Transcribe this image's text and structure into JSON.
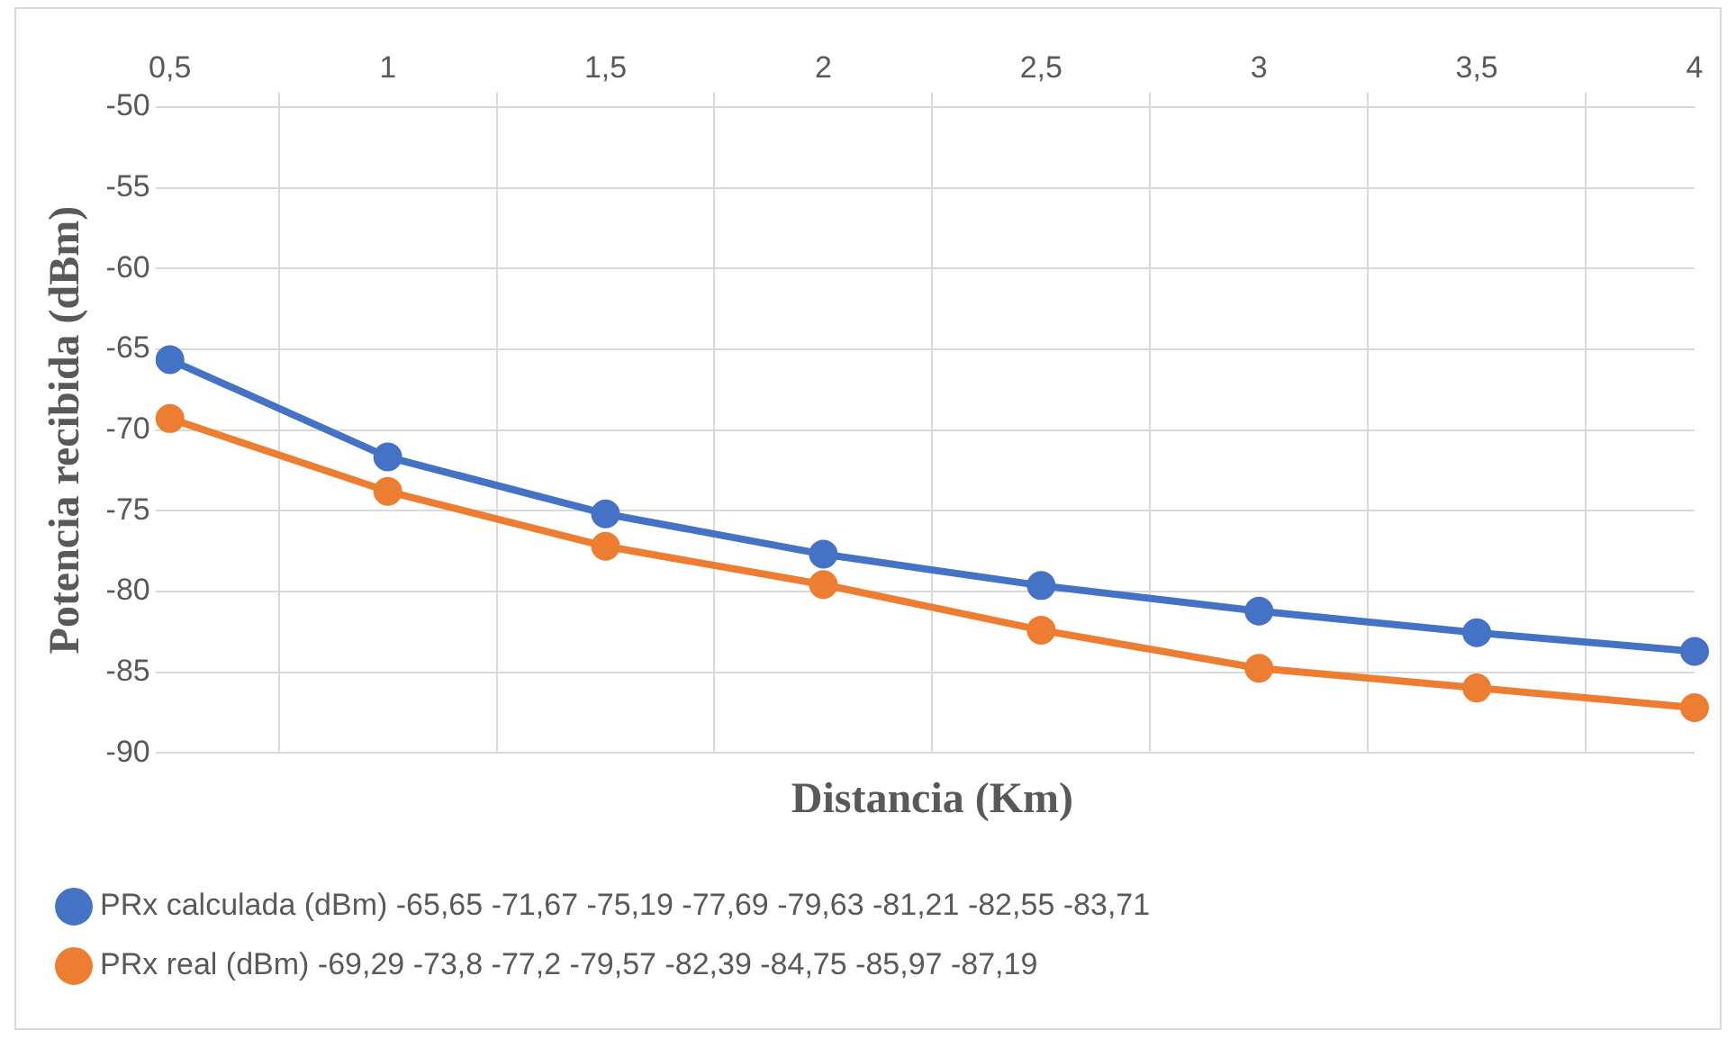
{
  "chart_data": {
    "type": "line",
    "xlabel": "Distancia (Km)",
    "ylabel": "Potencia recibida (dBm)",
    "categories": [
      "0,5",
      "1",
      "1,5",
      "2",
      "2,5",
      "3",
      "3,5",
      "4"
    ],
    "series": [
      {
        "name": "PRx calculada (dBm) -65,65 -71,67 -75,19 -77,69 -79,63 -81,21 -82,55 -83,71",
        "color": "#4472c4",
        "values": [
          -65.65,
          -71.67,
          -75.19,
          -77.69,
          -79.63,
          -81.21,
          -82.55,
          -83.71
        ]
      },
      {
        "name": "PRx real (dBm) -69,29 -73,8 -77,2 -79,57 -82,39 -84,75 -85,97 -87,19",
        "color": "#ed7d31",
        "values": [
          -69.29,
          -73.8,
          -77.2,
          -79.57,
          -82.39,
          -84.75,
          -85.97,
          -87.19
        ]
      }
    ],
    "ylim": [
      -90,
      -50
    ],
    "yticks": [
      -90,
      -85,
      -80,
      -75,
      -70,
      -65,
      -60,
      -55,
      -50
    ],
    "grid": true,
    "legend": "bottom",
    "marker": "circle",
    "line_style": "solid"
  }
}
